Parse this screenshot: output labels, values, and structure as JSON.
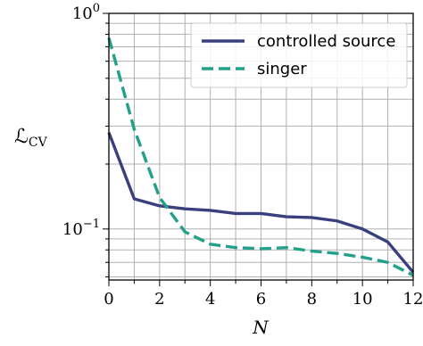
{
  "chart_data": {
    "type": "line",
    "title": "",
    "xlabel": "N",
    "ylabel_main": "ℒ",
    "ylabel_sub": "CV",
    "xlim": [
      0,
      12
    ],
    "ylim": [
      0.058,
      1.0
    ],
    "yscale": "log",
    "grid": "major and minor",
    "legend_position": "top-right",
    "x_ticks": [
      {
        "value": 0,
        "label": "0"
      },
      {
        "value": 2,
        "label": "2"
      },
      {
        "value": 4,
        "label": "4"
      },
      {
        "value": 6,
        "label": "6"
      },
      {
        "value": 8,
        "label": "8"
      },
      {
        "value": 10,
        "label": "10"
      },
      {
        "value": 12,
        "label": "12"
      }
    ],
    "y_ticks": [
      {
        "value": 1.0,
        "base": "10",
        "exp": "0"
      },
      {
        "value": 0.1,
        "base": "10",
        "exp": "−1"
      }
    ],
    "x": [
      0,
      1,
      2,
      3,
      4,
      5,
      6,
      7,
      8,
      9,
      10,
      11,
      12
    ],
    "series": [
      {
        "name": "controlled source",
        "color": "#3a3f7e",
        "style": "solid",
        "values": [
          0.28,
          0.138,
          0.128,
          0.124,
          0.122,
          0.118,
          0.118,
          0.114,
          0.113,
          0.109,
          0.1,
          0.087,
          0.063
        ]
      },
      {
        "name": "singer",
        "color": "#23a08a",
        "style": "dashed",
        "values": [
          0.77,
          0.29,
          0.14,
          0.097,
          0.085,
          0.082,
          0.081,
          0.082,
          0.079,
          0.077,
          0.074,
          0.07,
          0.061
        ]
      }
    ]
  }
}
